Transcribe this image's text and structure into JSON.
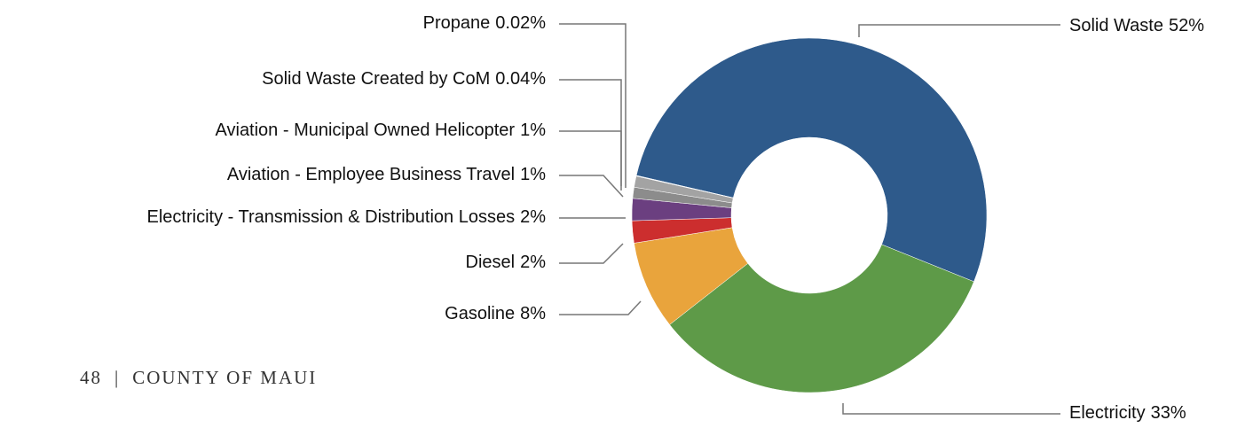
{
  "chart_data": {
    "type": "donut",
    "categories": [
      "Solid Waste",
      "Electricity",
      "Gasoline",
      "Diesel",
      "Electricity - Transmission & Distribution Losses",
      "Aviation - Employee Business Travel",
      "Aviation - Municipal Owned Helicopter",
      "Solid Waste Created by CoM",
      "Propane"
    ],
    "values": [
      52,
      33,
      8,
      2,
      2,
      1,
      1,
      0.04,
      0.02
    ],
    "value_labels": [
      "52%",
      "33%",
      "8%",
      "2%",
      "2%",
      "1%",
      "1%",
      "0.04%",
      "0.02%"
    ],
    "colors": [
      "#2e5a8b",
      "#5e9a48",
      "#e9a43c",
      "#cc2e2e",
      "#6b3f80",
      "#8c8c8c",
      "#a3a3a3",
      "#6e8fbf",
      "#4f74a8"
    ]
  },
  "footer": {
    "page": "48",
    "separator": "|",
    "text": "COUNTY OF MAUI"
  }
}
